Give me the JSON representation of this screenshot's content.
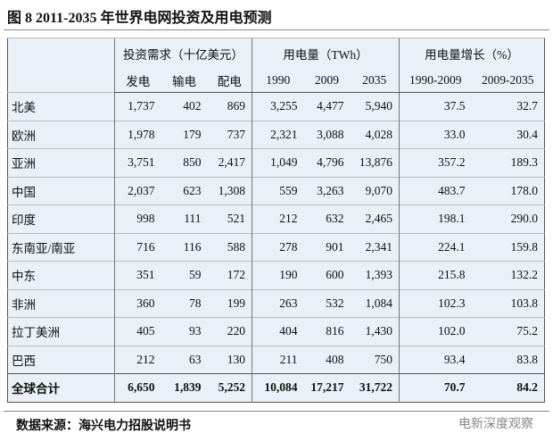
{
  "title": "图 8 2011-2035 年世界电网投资及用电预测",
  "table": {
    "groups": [
      "投资需求（十亿美元）",
      "用电量（TWh）",
      "用电量增长（%）"
    ],
    "columns": [
      "发电",
      "输电",
      "配电",
      "1990",
      "2009",
      "2035",
      "1990-2009",
      "2009-2035"
    ],
    "rows": [
      [
        "北美",
        "1,737",
        "402",
        "869",
        "3,255",
        "4,477",
        "5,940",
        "37.5",
        "32.7"
      ],
      [
        "欧洲",
        "1,978",
        "179",
        "737",
        "2,321",
        "3,088",
        "4,028",
        "33.0",
        "30.4"
      ],
      [
        "亚洲",
        "3,751",
        "850",
        "2,417",
        "1,049",
        "4,796",
        "13,876",
        "357.2",
        "189.3"
      ],
      [
        "中国",
        "2,037",
        "623",
        "1,308",
        "559",
        "3,263",
        "9,070",
        "483.7",
        "178.0"
      ],
      [
        "印度",
        "998",
        "111",
        "521",
        "212",
        "632",
        "2,465",
        "198.1",
        "290.0"
      ],
      [
        "东南亚/南亚",
        "716",
        "116",
        "588",
        "278",
        "901",
        "2,341",
        "224.1",
        "159.8"
      ],
      [
        "中东",
        "351",
        "59",
        "172",
        "190",
        "600",
        "1,393",
        "215.8",
        "132.2"
      ],
      [
        "非洲",
        "360",
        "78",
        "199",
        "263",
        "532",
        "1,084",
        "102.3",
        "103.8"
      ],
      [
        "拉丁美洲",
        "405",
        "93",
        "220",
        "404",
        "816",
        "1,430",
        "102.0",
        "75.2"
      ],
      [
        "巴西",
        "212",
        "63",
        "130",
        "211",
        "408",
        "750",
        "93.4",
        "83.8"
      ],
      [
        "全球合计",
        "6,650",
        "1,839",
        "5,252",
        "10,084",
        "17,217",
        "31,722",
        "70.7",
        "84.2"
      ]
    ]
  },
  "footer": "数据来源：海兴电力招股说明书",
  "watermark": "电新深度观察"
}
